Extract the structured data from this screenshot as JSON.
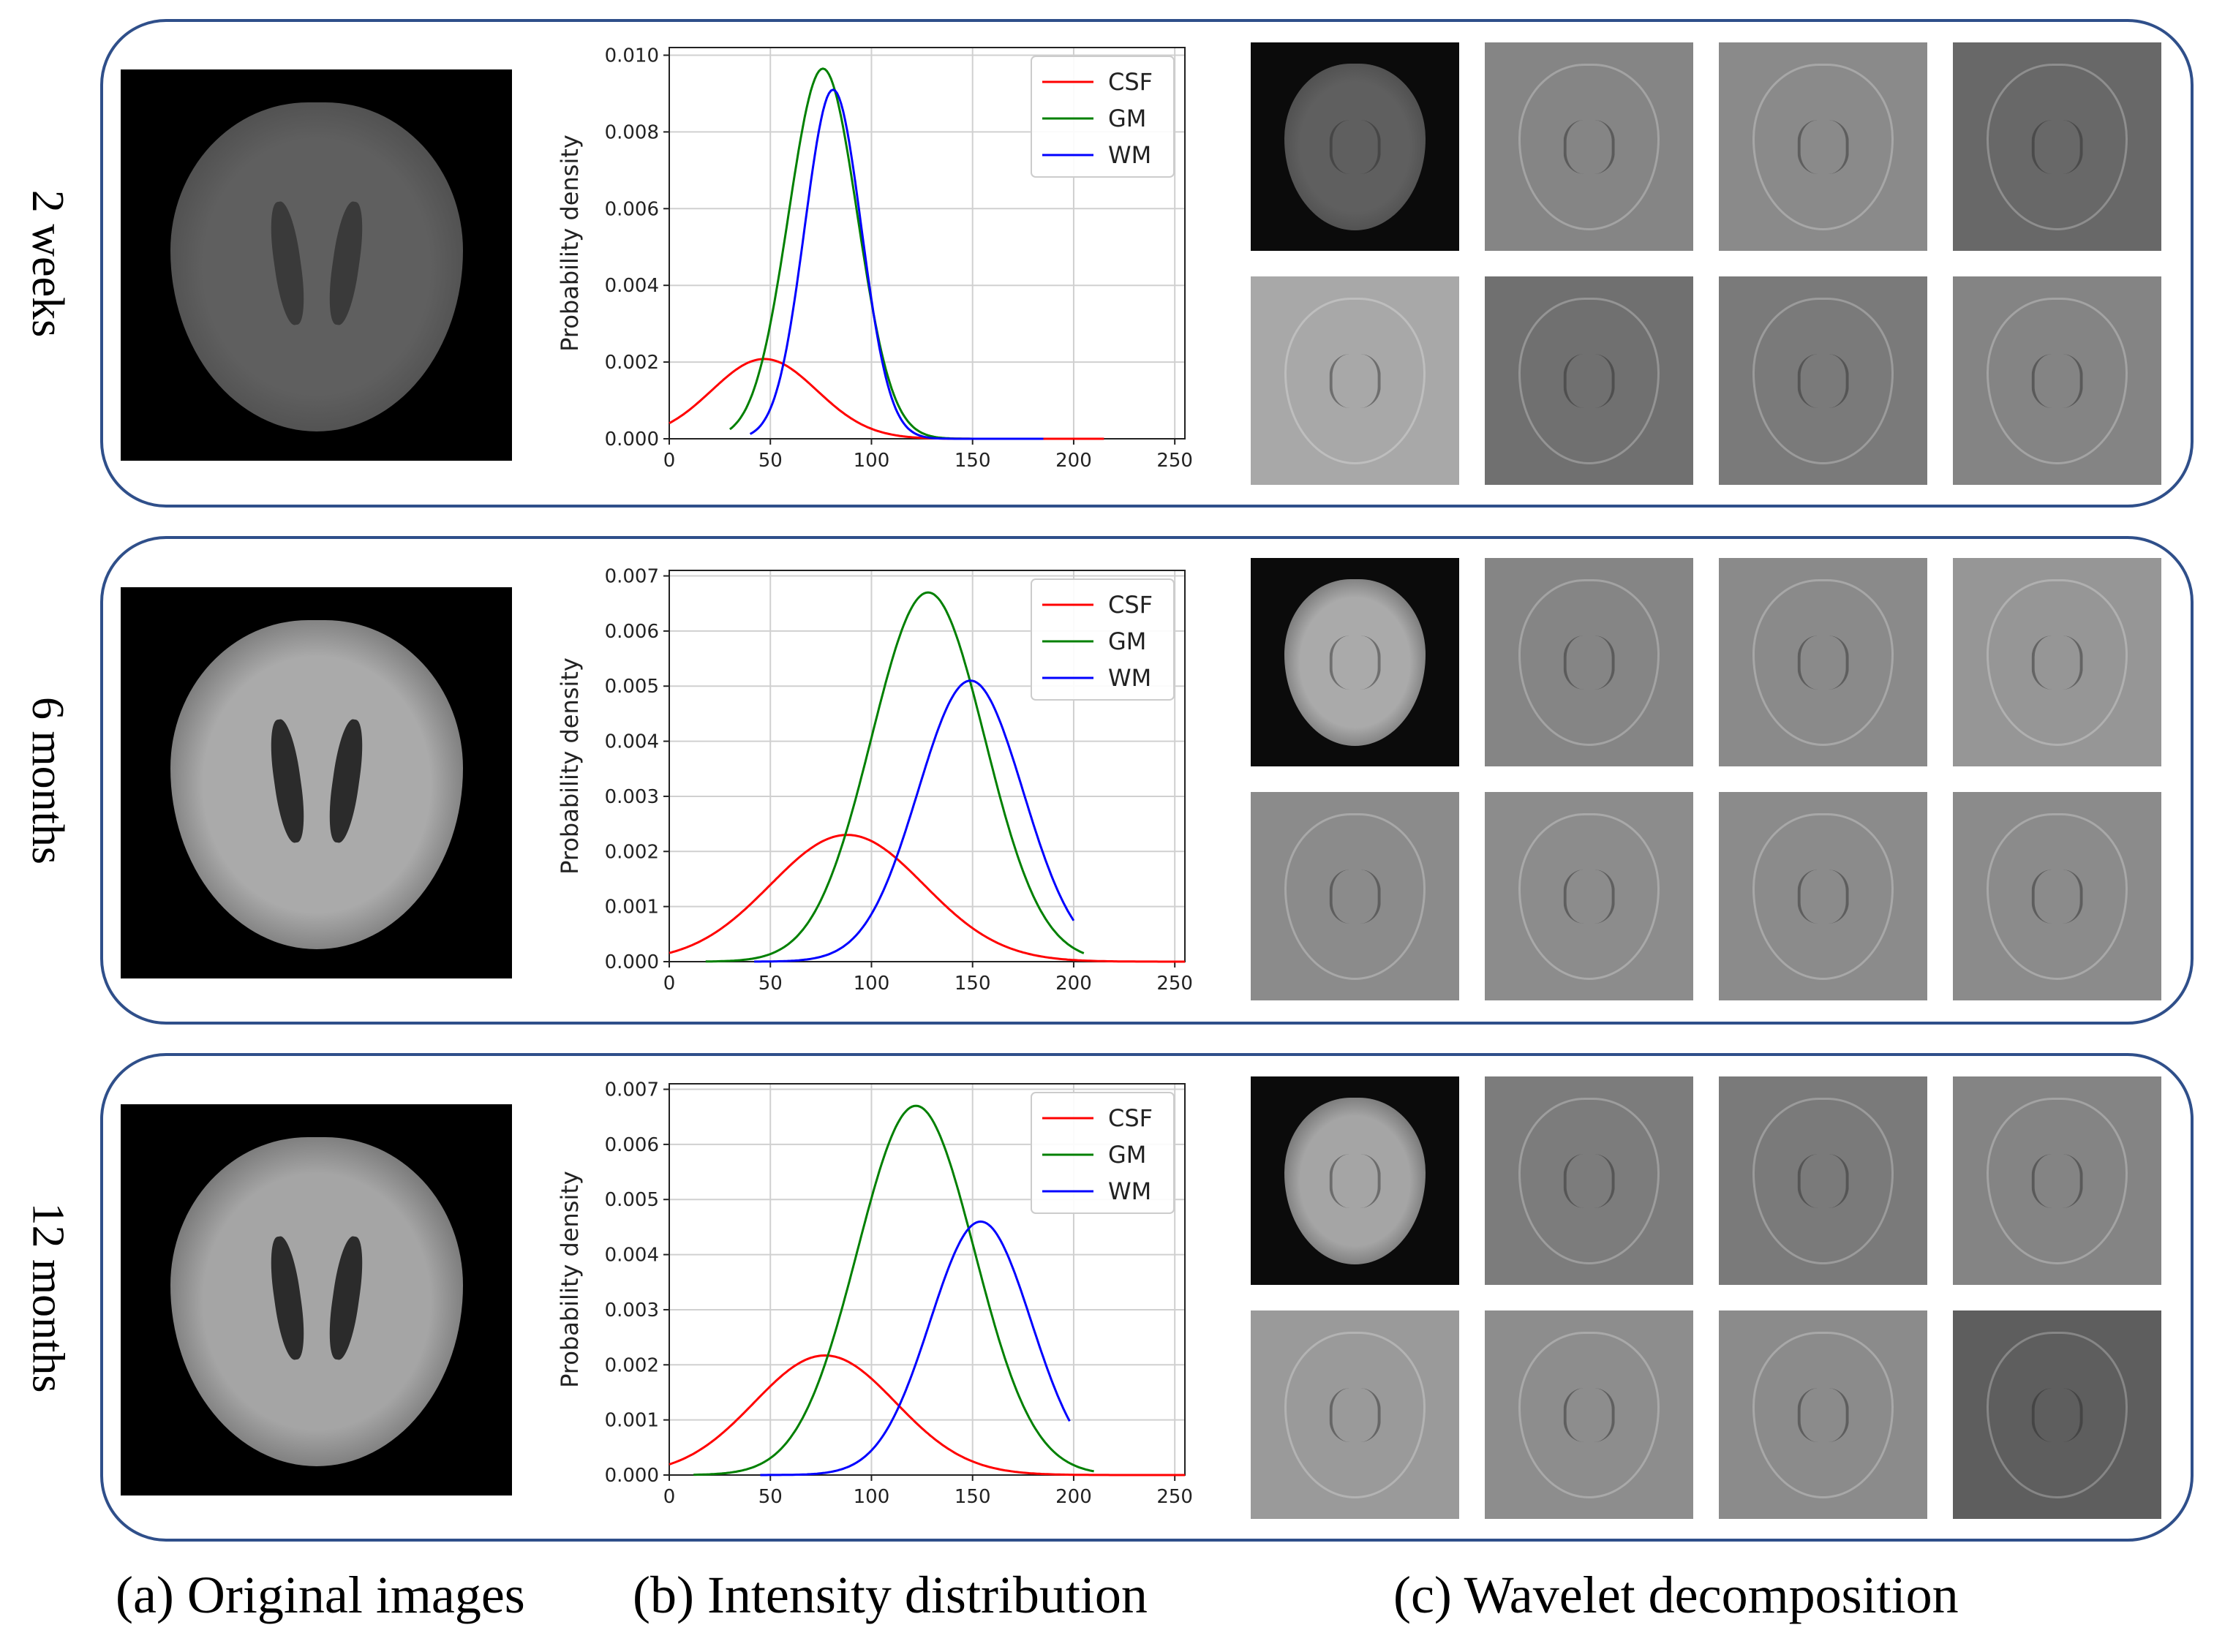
{
  "rows": [
    {
      "label": "2 weeks"
    },
    {
      "label": "6 months"
    },
    {
      "label": "12 months"
    }
  ],
  "captions": {
    "a": "(a) Original images",
    "b": "(b) Intensity distribution",
    "c": "(c) Wavelet decomposition"
  },
  "colors": {
    "csf": "#ff0000",
    "gm": "#008000",
    "wm": "#0000ff",
    "frame": "#2f4f8a"
  },
  "chart_data": [
    {
      "type": "line",
      "ylabel": "Probability density",
      "xlim": [
        0,
        255
      ],
      "ylim": [
        0,
        0.0102
      ],
      "xticks": [
        0,
        50,
        100,
        150,
        200,
        250
      ],
      "yticks": [
        "0.000",
        "0.002",
        "0.004",
        "0.006",
        "0.008",
        "0.010"
      ],
      "grid": true,
      "legend_position": "top-right",
      "series": [
        {
          "name": "CSF",
          "mu": 47,
          "sigma": 26,
          "peak": 0.00208,
          "xrange": [
            0,
            215
          ]
        },
        {
          "name": "GM",
          "mu": 76,
          "sigma": 17,
          "peak": 0.00965,
          "xrange": [
            30,
            185
          ]
        },
        {
          "name": "WM",
          "mu": 81,
          "sigma": 14,
          "peak": 0.0091,
          "xrange": [
            40,
            185
          ]
        }
      ]
    },
    {
      "type": "line",
      "ylabel": "Probability density",
      "xlim": [
        0,
        255
      ],
      "ylim": [
        0,
        0.0071
      ],
      "xticks": [
        0,
        50,
        100,
        150,
        200,
        250
      ],
      "yticks": [
        "0.000",
        "0.001",
        "0.002",
        "0.003",
        "0.004",
        "0.005",
        "0.006",
        "0.007"
      ],
      "grid": true,
      "legend_position": "top-right",
      "series": [
        {
          "name": "CSF",
          "mu": 88,
          "sigma": 38,
          "peak": 0.0023,
          "xrange": [
            0,
            255
          ]
        },
        {
          "name": "GM",
          "mu": 128,
          "sigma": 28,
          "peak": 0.0067,
          "xrange": [
            18,
            205
          ]
        },
        {
          "name": "WM",
          "mu": 149,
          "sigma": 26,
          "peak": 0.0051,
          "xrange": [
            42,
            200
          ]
        }
      ]
    },
    {
      "type": "line",
      "ylabel": "Probability density",
      "xlim": [
        0,
        255
      ],
      "ylim": [
        0,
        0.0071
      ],
      "xticks": [
        0,
        50,
        100,
        150,
        200,
        250
      ],
      "yticks": [
        "0.000",
        "0.001",
        "0.002",
        "0.003",
        "0.004",
        "0.005",
        "0.006",
        "0.007"
      ],
      "grid": true,
      "legend_position": "top-right",
      "series": [
        {
          "name": "CSF",
          "mu": 77,
          "sigma": 35,
          "peak": 0.00217,
          "xrange": [
            0,
            255
          ]
        },
        {
          "name": "GM",
          "mu": 122,
          "sigma": 29,
          "peak": 0.0067,
          "xrange": [
            12,
            210
          ]
        },
        {
          "name": "WM",
          "mu": 154,
          "sigma": 25,
          "peak": 0.0046,
          "xrange": [
            45,
            198
          ]
        }
      ]
    }
  ],
  "images": [
    {
      "brain": "#5f5f5f",
      "vent": "#3a3a3a",
      "tiles": [
        "#0b0b0b",
        "#858585",
        "#8a8a8a",
        "#686868",
        "#a8a8a8",
        "#707070",
        "#7a7a7a",
        "#848484"
      ]
    },
    {
      "brain": "#aaaaaa",
      "vent": "#2b2b2b",
      "tiles": [
        "#0b0b0b",
        "#858585",
        "#8a8a8a",
        "#969696",
        "#8b8b8b",
        "#8c8c8c",
        "#8b8b8b",
        "#8b8b8b"
      ]
    },
    {
      "brain": "#a5a5a5",
      "vent": "#2b2b2b",
      "tiles": [
        "#0b0b0b",
        "#7c7c7c",
        "#7a7a7a",
        "#848484",
        "#9a9a9a",
        "#8d8d8d",
        "#8b8b8b",
        "#5e5e5e"
      ]
    }
  ]
}
